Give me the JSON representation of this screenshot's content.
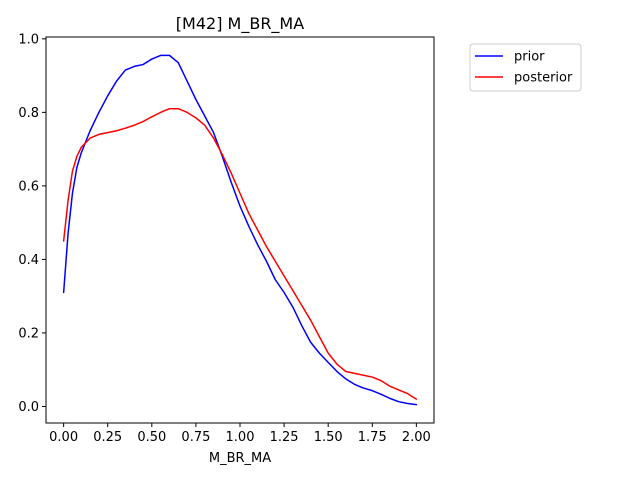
{
  "chart_data": {
    "type": "line",
    "title": "[M42] M_BR_MA",
    "xlabel": "M_BR_MA",
    "ylabel": "",
    "xlim": [
      -0.1,
      2.1
    ],
    "ylim": [
      -0.045,
      1.005
    ],
    "xticks": [
      0.0,
      0.25,
      0.5,
      0.75,
      1.0,
      1.25,
      1.5,
      1.75,
      2.0
    ],
    "xtick_labels": [
      "0.00",
      "0.25",
      "0.50",
      "0.75",
      "1.00",
      "1.25",
      "1.50",
      "1.75",
      "2.00"
    ],
    "yticks": [
      0.0,
      0.2,
      0.4,
      0.6,
      0.8,
      1.0
    ],
    "ytick_labels": [
      "0.0",
      "0.2",
      "0.4",
      "0.6",
      "0.8",
      "1.0"
    ],
    "grid": false,
    "legend_position": "outside-top-right",
    "series": [
      {
        "name": "prior",
        "color": "#0000ff",
        "x": [
          0.0,
          0.025,
          0.05,
          0.075,
          0.1,
          0.15,
          0.2,
          0.25,
          0.3,
          0.35,
          0.4,
          0.45,
          0.5,
          0.55,
          0.6,
          0.65,
          0.7,
          0.75,
          0.8,
          0.85,
          0.9,
          0.95,
          1.0,
          1.05,
          1.1,
          1.15,
          1.2,
          1.25,
          1.3,
          1.35,
          1.4,
          1.45,
          1.5,
          1.55,
          1.6,
          1.65,
          1.7,
          1.75,
          1.8,
          1.85,
          1.9,
          1.95,
          2.0
        ],
        "values": [
          0.31,
          0.47,
          0.58,
          0.65,
          0.69,
          0.75,
          0.8,
          0.845,
          0.885,
          0.915,
          0.925,
          0.93,
          0.945,
          0.955,
          0.955,
          0.935,
          0.885,
          0.835,
          0.79,
          0.745,
          0.68,
          0.61,
          0.545,
          0.49,
          0.44,
          0.395,
          0.345,
          0.31,
          0.27,
          0.22,
          0.175,
          0.145,
          0.12,
          0.095,
          0.075,
          0.06,
          0.05,
          0.043,
          0.033,
          0.022,
          0.013,
          0.008,
          0.005
        ]
      },
      {
        "name": "posterior",
        "color": "#ff0000",
        "x": [
          0.0,
          0.025,
          0.05,
          0.075,
          0.1,
          0.15,
          0.2,
          0.25,
          0.3,
          0.35,
          0.4,
          0.45,
          0.5,
          0.55,
          0.6,
          0.65,
          0.7,
          0.75,
          0.8,
          0.85,
          0.9,
          0.95,
          1.0,
          1.05,
          1.1,
          1.15,
          1.2,
          1.25,
          1.3,
          1.35,
          1.4,
          1.45,
          1.5,
          1.55,
          1.6,
          1.65,
          1.7,
          1.75,
          1.8,
          1.85,
          1.9,
          1.95,
          2.0
        ],
        "values": [
          0.45,
          0.56,
          0.64,
          0.68,
          0.705,
          0.73,
          0.74,
          0.745,
          0.75,
          0.757,
          0.765,
          0.775,
          0.788,
          0.8,
          0.81,
          0.81,
          0.8,
          0.785,
          0.765,
          0.73,
          0.685,
          0.635,
          0.58,
          0.525,
          0.48,
          0.435,
          0.395,
          0.355,
          0.315,
          0.275,
          0.235,
          0.19,
          0.145,
          0.115,
          0.095,
          0.09,
          0.085,
          0.08,
          0.07,
          0.055,
          0.045,
          0.035,
          0.02
        ]
      }
    ]
  }
}
